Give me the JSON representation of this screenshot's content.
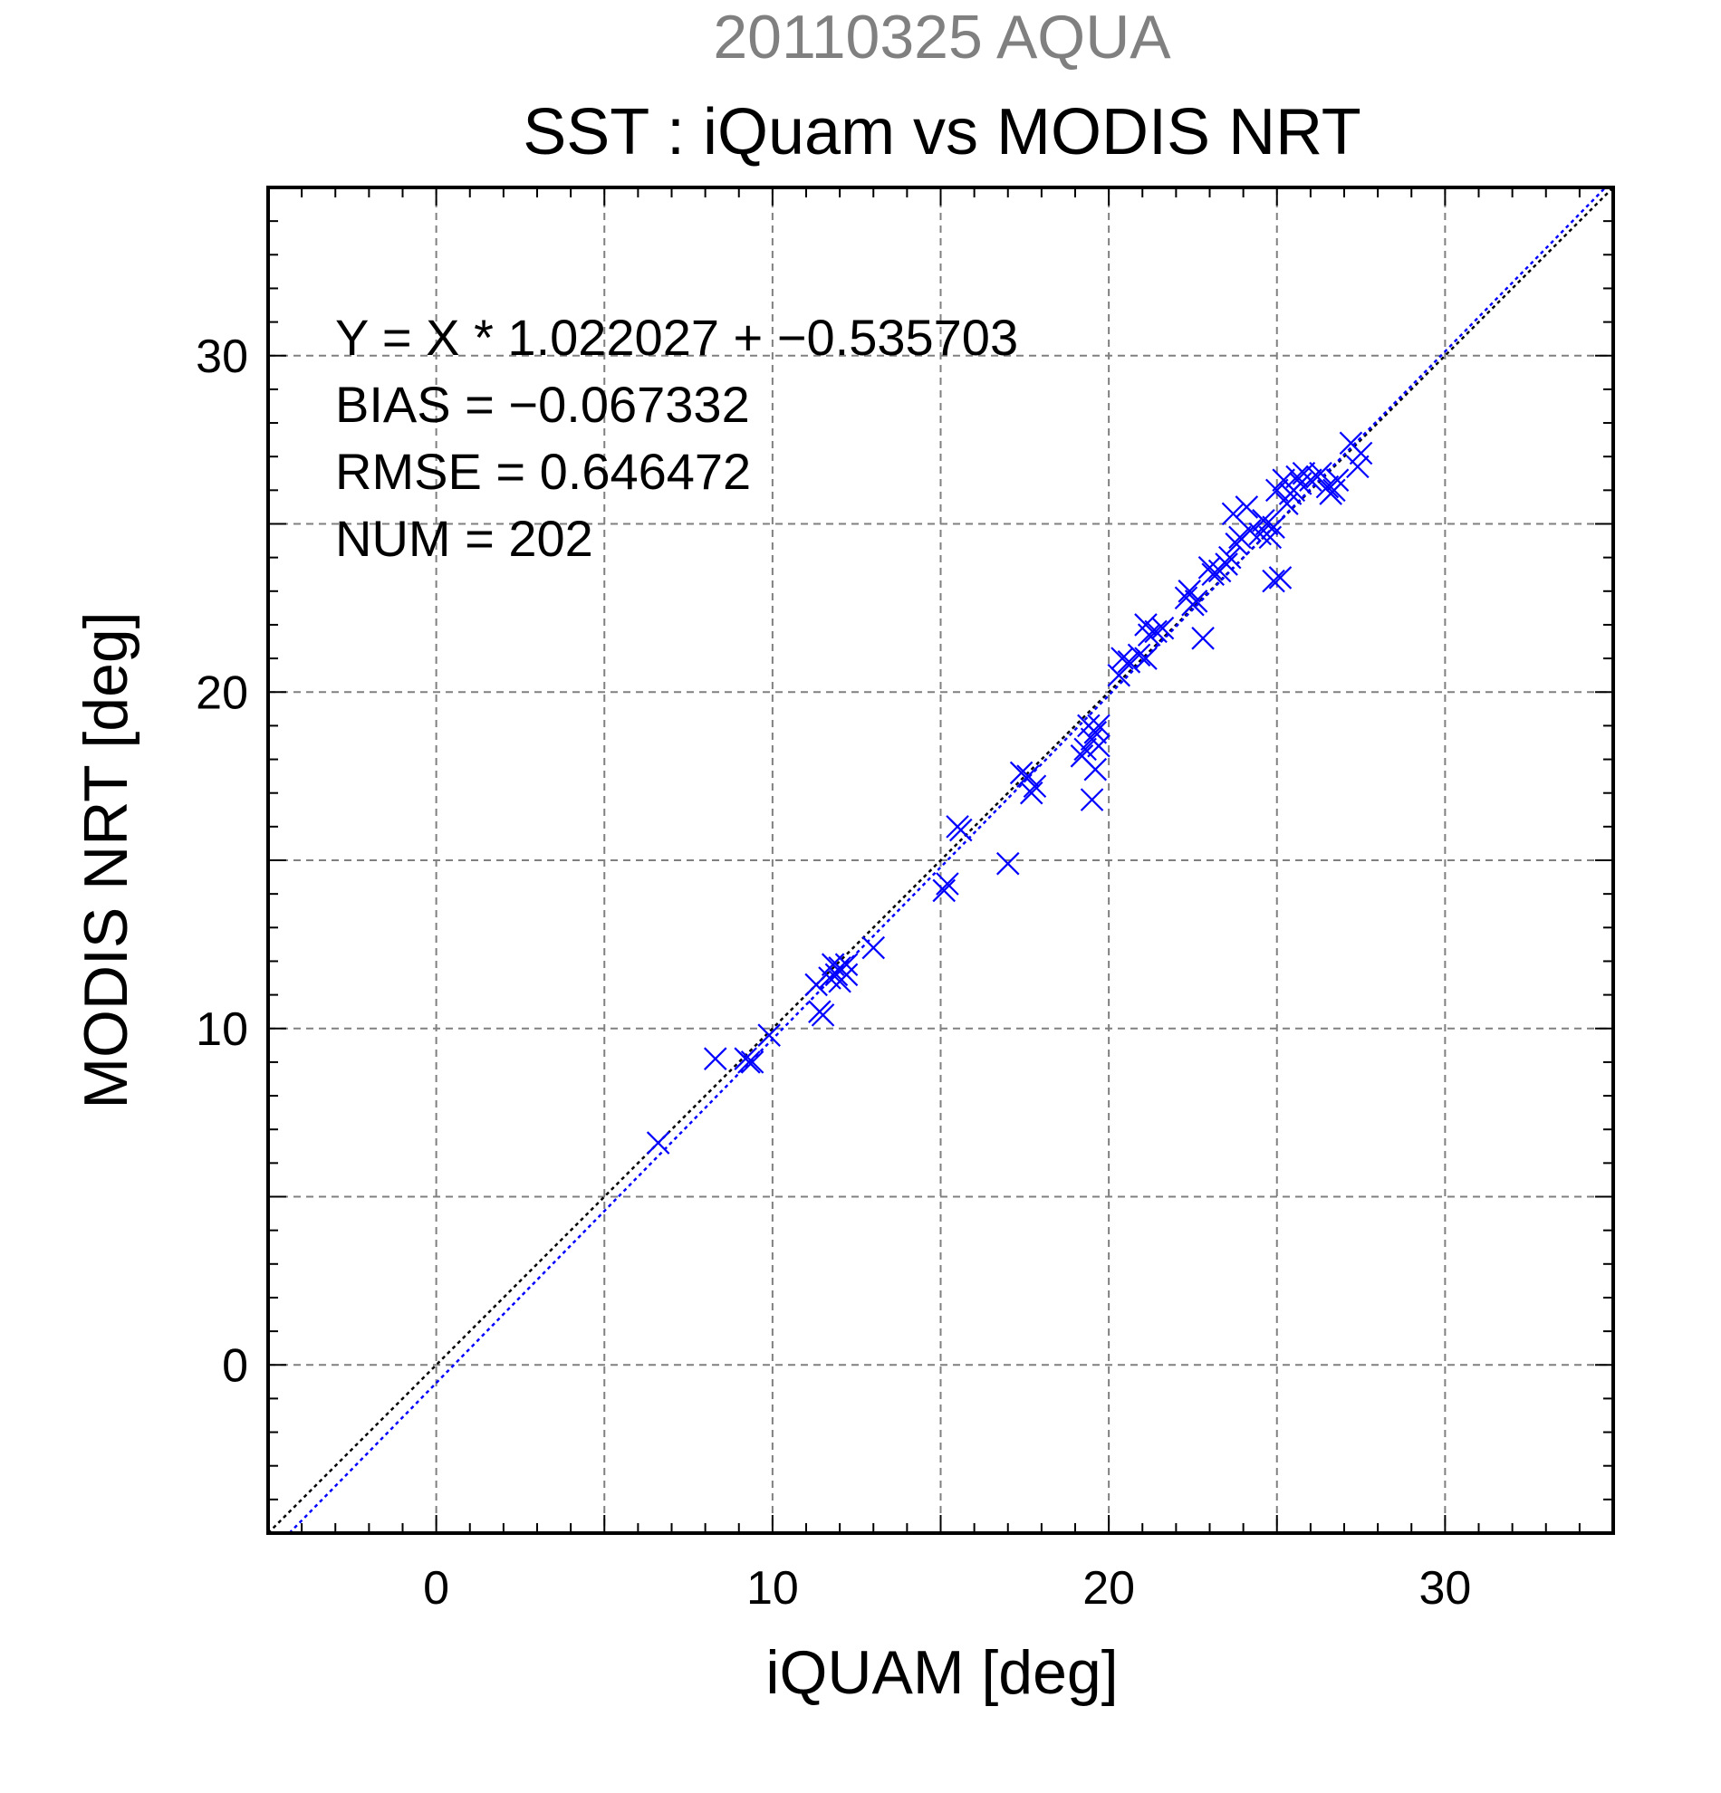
{
  "chart_data": {
    "type": "scatter",
    "title": "SST : iQuam vs MODIS NRT",
    "subtitle": "20110325 AQUA",
    "xlabel": "iQUAM [deg]",
    "ylabel": "MODIS NRT [deg]",
    "xlim": [
      -5,
      35
    ],
    "ylim": [
      -5,
      35
    ],
    "xticks": [
      0,
      10,
      20,
      30
    ],
    "yticks": [
      0,
      10,
      20,
      30
    ],
    "xtick_labels": [
      "0",
      "10",
      "20",
      "30"
    ],
    "ytick_labels": [
      "0",
      "10",
      "20",
      "30"
    ],
    "grid": true,
    "annotations": [
      "Y = X * 1.022027 + −0.535703",
      "BIAS = −0.067332",
      "RMSE = 0.646472",
      "NUM = 202"
    ],
    "reference_lines": [
      {
        "kind": "identity",
        "slope": 1.0,
        "intercept": 0.0,
        "color": "#000000",
        "style": "dotted"
      },
      {
        "kind": "regression",
        "slope": 1.022027,
        "intercept": -0.535703,
        "color": "#0000ff",
        "style": "dotted"
      }
    ],
    "series": [
      {
        "marker": "x",
        "color": "#0000ff",
        "points": [
          [
            6.6,
            6.6
          ],
          [
            8.3,
            9.1
          ],
          [
            9.2,
            9.1
          ],
          [
            9.3,
            9.0
          ],
          [
            9.4,
            9.0
          ],
          [
            9.9,
            9.8
          ],
          [
            11.3,
            11.3
          ],
          [
            11.4,
            10.5
          ],
          [
            11.5,
            10.4
          ],
          [
            11.7,
            11.5
          ],
          [
            11.8,
            11.9
          ],
          [
            11.9,
            11.6
          ],
          [
            12.0,
            11.4
          ],
          [
            12.0,
            11.8
          ],
          [
            12.2,
            11.6
          ],
          [
            12.2,
            11.9
          ],
          [
            13.0,
            12.4
          ],
          [
            15.1,
            14.1
          ],
          [
            15.2,
            14.3
          ],
          [
            15.5,
            16.0
          ],
          [
            15.6,
            15.9
          ],
          [
            17.0,
            14.9
          ],
          [
            17.4,
            17.6
          ],
          [
            17.6,
            17.5
          ],
          [
            17.7,
            17.0
          ],
          [
            17.8,
            17.2
          ],
          [
            19.2,
            18.1
          ],
          [
            19.3,
            18.3
          ],
          [
            19.4,
            19.0
          ],
          [
            19.5,
            18.6
          ],
          [
            19.5,
            16.8
          ],
          [
            19.6,
            18.8
          ],
          [
            19.6,
            17.7
          ],
          [
            19.7,
            19.0
          ],
          [
            19.7,
            18.4
          ],
          [
            20.3,
            20.5
          ],
          [
            20.4,
            21.0
          ],
          [
            20.6,
            20.9
          ],
          [
            20.9,
            21.1
          ],
          [
            21.1,
            21.0
          ],
          [
            21.1,
            22.0
          ],
          [
            21.2,
            21.7
          ],
          [
            21.4,
            21.8
          ],
          [
            21.6,
            21.9
          ],
          [
            22.3,
            22.8
          ],
          [
            22.4,
            23.0
          ],
          [
            22.5,
            22.6
          ],
          [
            22.6,
            22.7
          ],
          [
            22.8,
            21.6
          ],
          [
            23.0,
            23.7
          ],
          [
            23.1,
            23.5
          ],
          [
            23.3,
            23.6
          ],
          [
            23.5,
            23.8
          ],
          [
            23.6,
            24.0
          ],
          [
            23.7,
            25.3
          ],
          [
            23.8,
            24.4
          ],
          [
            23.9,
            24.6
          ],
          [
            24.1,
            25.5
          ],
          [
            24.2,
            24.8
          ],
          [
            24.5,
            24.7
          ],
          [
            24.6,
            25.1
          ],
          [
            24.7,
            25.0
          ],
          [
            24.8,
            24.6
          ],
          [
            24.9,
            24.9
          ],
          [
            24.9,
            23.3
          ],
          [
            25.0,
            26.0
          ],
          [
            25.1,
            23.4
          ],
          [
            25.2,
            26.3
          ],
          [
            25.3,
            25.6
          ],
          [
            25.4,
            25.9
          ],
          [
            25.5,
            26.0
          ],
          [
            25.6,
            26.4
          ],
          [
            25.7,
            26.2
          ],
          [
            25.8,
            26.5
          ],
          [
            26.0,
            26.3
          ],
          [
            26.2,
            26.4
          ],
          [
            26.3,
            26.5
          ],
          [
            26.5,
            26.1
          ],
          [
            26.6,
            25.9
          ],
          [
            26.7,
            26.0
          ],
          [
            26.8,
            26.3
          ],
          [
            27.2,
            27.4
          ],
          [
            27.4,
            26.7
          ],
          [
            27.5,
            27.1
          ]
        ]
      }
    ]
  }
}
